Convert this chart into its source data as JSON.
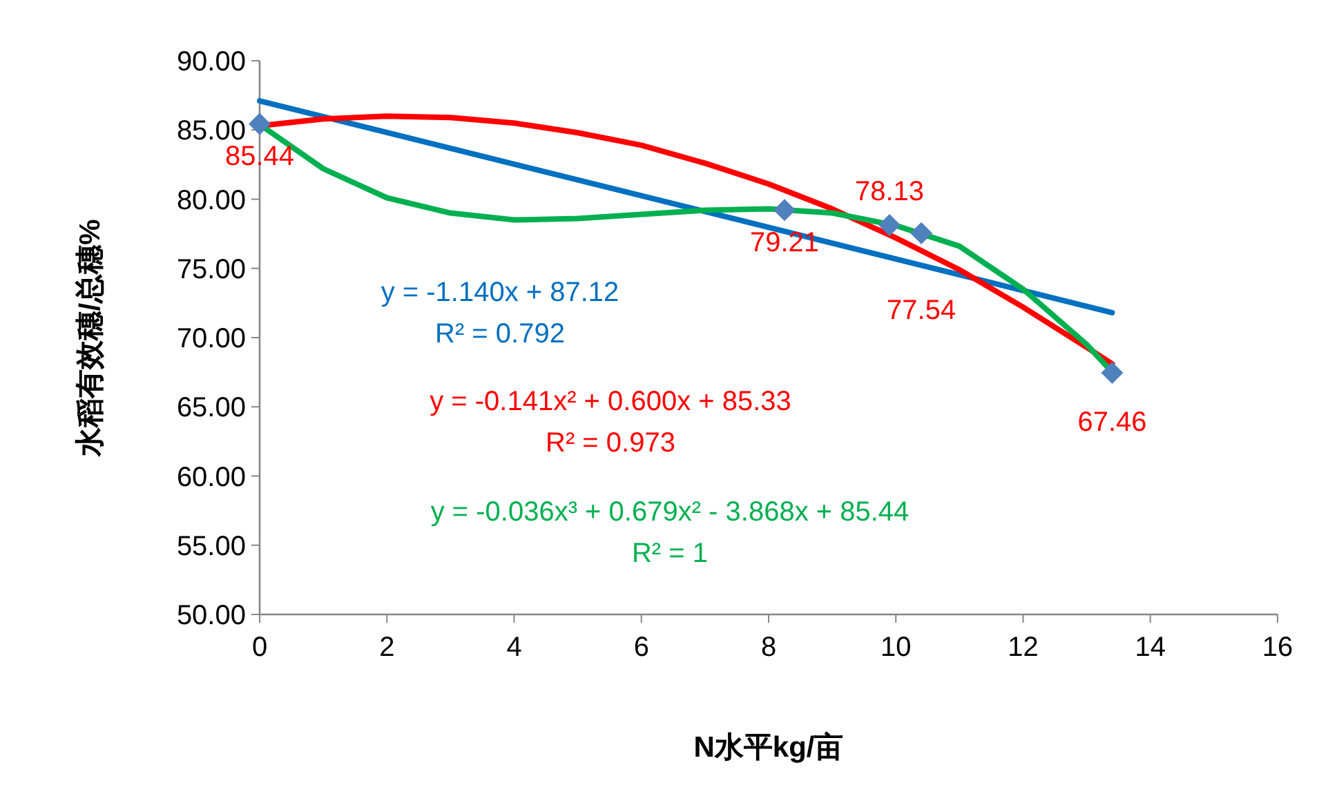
{
  "chart_data": {
    "type": "scatter",
    "xlabel": "N水平kg/亩",
    "ylabel": "水稻有效穗/总穗%",
    "xlim": [
      0,
      16
    ],
    "xticks": [
      0,
      2,
      4,
      6,
      8,
      10,
      12,
      14,
      16
    ],
    "ylim": [
      50,
      90
    ],
    "yticks": [
      {
        "value": 50,
        "label": "50.00"
      },
      {
        "value": 55,
        "label": "55.00"
      },
      {
        "value": 60,
        "label": "60.00"
      },
      {
        "value": 65,
        "label": "65.00"
      },
      {
        "value": 70,
        "label": "70.00"
      },
      {
        "value": 75,
        "label": "75.00"
      },
      {
        "value": 80,
        "label": "80.00"
      },
      {
        "value": 85,
        "label": "85.00"
      },
      {
        "value": 90,
        "label": "90.00"
      }
    ],
    "grid": false,
    "series": [
      {
        "type": "line",
        "color": "#0070c0",
        "marker": "none",
        "x": [
          0,
          13.4
        ],
        "values": [
          87.1,
          71.8
        ]
      },
      {
        "type": "line",
        "color": "#ff0000",
        "marker": "none",
        "x": [
          0,
          1,
          2,
          3,
          4,
          5,
          6,
          7,
          8,
          9,
          10,
          11,
          12,
          13,
          13.4
        ],
        "values": [
          85.3,
          85.8,
          86.0,
          85.9,
          85.5,
          84.8,
          83.9,
          82.6,
          81.1,
          79.3,
          77.2,
          74.9,
          72.2,
          69.3,
          68.1
        ]
      },
      {
        "type": "line",
        "color": "#00b050",
        "marker": "none",
        "x": [
          0,
          1,
          2,
          3,
          4,
          5,
          6,
          7,
          8,
          9,
          10,
          11,
          12,
          13,
          13.4
        ],
        "values": [
          85.4,
          82.2,
          80.1,
          79.0,
          78.5,
          78.6,
          78.9,
          79.2,
          79.3,
          79.0,
          78.1,
          76.6,
          73.5,
          69.5,
          67.5
        ]
      },
      {
        "color": "#4f81bd",
        "marker": "diamond",
        "x": [
          0,
          8.25,
          9.9,
          10.4,
          13.4
        ],
        "values": [
          85.44,
          79.21,
          78.13,
          77.54,
          67.46
        ],
        "data_labels": true
      }
    ],
    "annotations": [
      "y = -1.140x + 87.12\nR² = 0.792",
      "y = -0.141x² + 0.600x + 85.33\nR² = 0.973",
      "y = -0.036x³ + 0.679x² - 3.868x + 85.44\nR² = 1"
    ]
  }
}
